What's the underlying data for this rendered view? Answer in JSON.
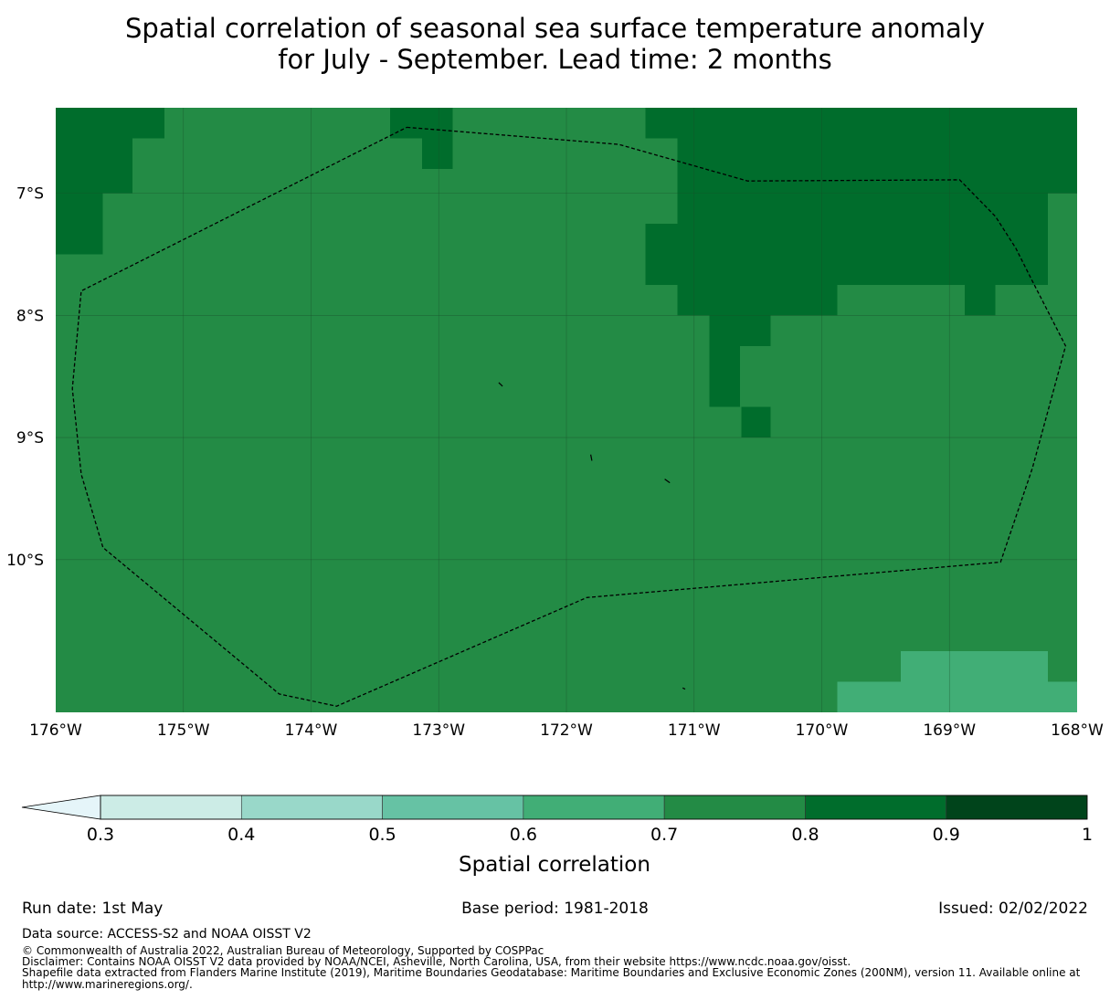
{
  "title": {
    "line1": "Spatial correlation of seasonal sea surface temperature anomaly",
    "line2": "for July - September. Lead time: 2 months"
  },
  "map": {
    "lon_range": [
      -176,
      -168
    ],
    "lat_range": [
      -11.25,
      -6.3
    ],
    "lon_ticks": [
      {
        "value": -176,
        "label": "176°W"
      },
      {
        "value": -175,
        "label": "175°W"
      },
      {
        "value": -174,
        "label": "174°W"
      },
      {
        "value": -173,
        "label": "173°W"
      },
      {
        "value": -172,
        "label": "172°W"
      },
      {
        "value": -171,
        "label": "171°W"
      },
      {
        "value": -170,
        "label": "170°W"
      },
      {
        "value": -169,
        "label": "169°W"
      },
      {
        "value": -168,
        "label": "168°W"
      }
    ],
    "lat_ticks": [
      {
        "value": -7,
        "label": "7°S"
      },
      {
        "value": -8,
        "label": "8°S"
      },
      {
        "value": -9,
        "label": "9°S"
      },
      {
        "value": -10,
        "label": "10°S"
      }
    ],
    "grid": true,
    "cell_size_deg": 0.25,
    "background_band": "0.7-0.8",
    "regions": [
      {
        "band": "0.8-0.9",
        "lon": [
          -176,
          -175.15
        ],
        "lat": [
          -6.55,
          -6.3
        ]
      },
      {
        "band": "0.8-0.9",
        "lon": [
          -176,
          -175.4
        ],
        "lat": [
          -7.0,
          -6.55
        ]
      },
      {
        "band": "0.8-0.9",
        "lon": [
          -176,
          -175.63
        ],
        "lat": [
          -7.5,
          -7.0
        ]
      },
      {
        "band": "0.8-0.9",
        "lon": [
          -173.38,
          -172.89
        ],
        "lat": [
          -6.55,
          -6.3
        ]
      },
      {
        "band": "0.8-0.9",
        "lon": [
          -173.13,
          -172.89
        ],
        "lat": [
          -6.8,
          -6.55
        ]
      },
      {
        "band": "0.8-0.9",
        "lon": [
          -171.38,
          -168
        ],
        "lat": [
          -6.55,
          -6.3
        ]
      },
      {
        "band": "0.8-0.9",
        "lon": [
          -171.13,
          -168
        ],
        "lat": [
          -7.0,
          -6.55
        ]
      },
      {
        "band": "0.8-0.9",
        "lon": [
          -171.13,
          -168.23
        ],
        "lat": [
          -7.25,
          -7.0
        ]
      },
      {
        "band": "0.8-0.9",
        "lon": [
          -171.38,
          -168.23
        ],
        "lat": [
          -7.75,
          -7.25
        ]
      },
      {
        "band": "0.8-0.9",
        "lon": [
          -171.13,
          -169.88
        ],
        "lat": [
          -8.0,
          -7.75
        ]
      },
      {
        "band": "0.8-0.9",
        "lon": [
          -168.88,
          -168.64
        ],
        "lat": [
          -8.0,
          -7.75
        ]
      },
      {
        "band": "0.8-0.9",
        "lon": [
          -170.88,
          -170.4
        ],
        "lat": [
          -8.25,
          -8.0
        ]
      },
      {
        "band": "0.8-0.9",
        "lon": [
          -170.88,
          -170.64
        ],
        "lat": [
          -8.75,
          -8.25
        ]
      },
      {
        "band": "0.8-0.9",
        "lon": [
          -170.63,
          -170.4
        ],
        "lat": [
          -9.0,
          -8.75
        ]
      },
      {
        "band": "0.6-0.7",
        "lon": [
          -169.38,
          -168.23
        ],
        "lat": [
          -11.0,
          -10.75
        ]
      },
      {
        "band": "0.6-0.7",
        "lon": [
          -169.88,
          -168
        ],
        "lat": [
          -11.25,
          -11.0
        ]
      }
    ],
    "eez_boundary": [
      [
        -173.25,
        -6.46
      ],
      [
        -171.59,
        -6.6
      ],
      [
        -170.58,
        -6.9
      ],
      [
        -168.92,
        -6.89
      ],
      [
        -168.64,
        -7.19
      ],
      [
        -168.48,
        -7.45
      ],
      [
        -168.36,
        -7.7
      ],
      [
        -168.09,
        -8.25
      ],
      [
        -168.35,
        -9.25
      ],
      [
        -168.6,
        -10.02
      ],
      [
        -171.84,
        -10.31
      ],
      [
        -173.8,
        -11.2
      ],
      [
        -174.25,
        -11.1
      ],
      [
        -175.63,
        -9.9
      ],
      [
        -175.8,
        -9.3
      ],
      [
        -175.87,
        -8.6
      ],
      [
        -175.8,
        -7.8
      ],
      [
        -173.25,
        -6.46
      ]
    ],
    "islands": [
      {
        "name": "",
        "points": [
          [
            -172.53,
            -8.55
          ],
          [
            -172.5,
            -8.58
          ]
        ]
      },
      {
        "name": "",
        "points": [
          [
            -171.81,
            -9.14
          ],
          [
            -171.8,
            -9.19
          ]
        ]
      },
      {
        "name": "",
        "points": [
          [
            -171.23,
            -9.34
          ],
          [
            -171.19,
            -9.37
          ]
        ]
      },
      {
        "name": "",
        "points": [
          [
            -171.09,
            -11.05
          ],
          [
            -171.07,
            -11.06
          ]
        ]
      }
    ]
  },
  "colorbar": {
    "bands": [
      {
        "key": "below-0.3",
        "color": "#e5f5f9"
      },
      {
        "key": "0.3-0.4",
        "color": "#ccece6"
      },
      {
        "key": "0.4-0.5",
        "color": "#99d8c9"
      },
      {
        "key": "0.5-0.6",
        "color": "#66c2a4"
      },
      {
        "key": "0.6-0.7",
        "color": "#41ae76"
      },
      {
        "key": "0.7-0.8",
        "color": "#238b45"
      },
      {
        "key": "0.8-0.9",
        "color": "#006d2c"
      },
      {
        "key": "0.9-1",
        "color": "#00441b"
      }
    ],
    "tick_labels": [
      "0.3",
      "0.4",
      "0.5",
      "0.6",
      "0.7",
      "0.8",
      "0.9",
      "1"
    ],
    "label": "Spatial correlation"
  },
  "footer": {
    "run_date": "Run date: 1st May",
    "base_period": "Base period: 1981-2018",
    "issued": "Issued: 02/02/2022",
    "data_source": "Data source: ACCESS-S2 and NOAA OISST V2",
    "copyright": "© Commonwealth of Australia 2022, Australian Bureau of Meteorology, Supported by COSPPac",
    "disclaimer": "Disclaimer: Contains NOAA OISST V2 data provided by NOAA/NCEI, Asheville, North Carolina, USA, from their website https://www.ncdc.noaa.gov/oisst.",
    "shapefile": "Shapefile data extracted from Flanders Marine Institute (2019), Maritime Boundaries Geodatabase: Maritime Boundaries and Exclusive Economic Zones (200NM), version 11. Available online at http://www.marineregions.org/."
  }
}
